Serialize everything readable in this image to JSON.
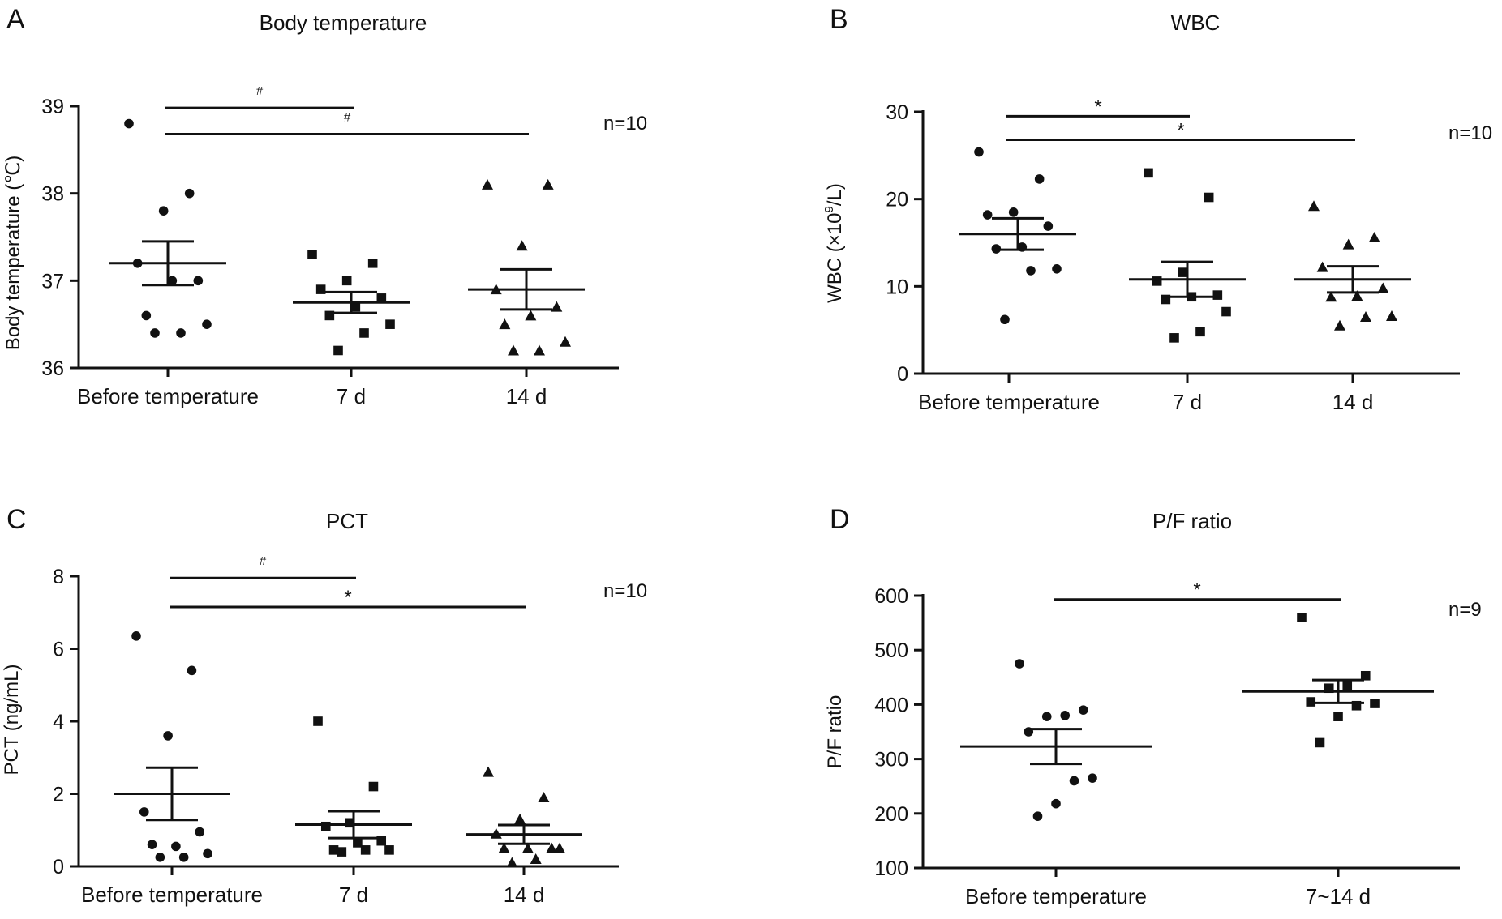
{
  "figure": {
    "background": "#ffffff",
    "ink": "#111111"
  },
  "chart_data": [
    {
      "panel": "A",
      "type": "scatter",
      "title": "Body temperature",
      "xlabel": "",
      "ylabel": "Body temperature (℃)",
      "ylim": [
        36,
        39
      ],
      "yticks": [
        36,
        37,
        38,
        39
      ],
      "categories": [
        "Before temperature",
        "7 d",
        "14 d"
      ],
      "annotation": "n=10",
      "series": [
        {
          "category": "Before temperature",
          "marker": "circle",
          "values": [
            38.8,
            38.0,
            37.8,
            37.2,
            37.0,
            37.0,
            36.6,
            36.5,
            36.4,
            36.4
          ],
          "mean": 37.2,
          "sem": 0.25
        },
        {
          "category": "7 d",
          "marker": "square",
          "values": [
            37.3,
            37.2,
            37.0,
            36.9,
            36.8,
            36.7,
            36.6,
            36.5,
            36.4,
            36.2
          ],
          "mean": 36.75,
          "sem": 0.12
        },
        {
          "category": "14 d",
          "marker": "triangle",
          "values": [
            38.1,
            38.1,
            37.4,
            36.9,
            36.7,
            36.6,
            36.5,
            36.3,
            36.2,
            36.2
          ],
          "mean": 36.9,
          "sem": 0.23
        }
      ],
      "significance": [
        {
          "from": "Before temperature",
          "to": "7 d",
          "y": 38.98,
          "label": "#"
        },
        {
          "from": "Before temperature",
          "to": "14 d",
          "y": 38.68,
          "label": "#"
        }
      ]
    },
    {
      "panel": "B",
      "type": "scatter",
      "title": "WBC",
      "xlabel": "",
      "ylabel": "WBC (×10",
      "ylabel_sup": "9",
      "ylabel_tail": "/L)",
      "ylim": [
        0,
        30
      ],
      "yticks": [
        0,
        10,
        20,
        30
      ],
      "categories": [
        "Before temperature",
        "7 d",
        "14 d"
      ],
      "annotation": "n=10",
      "series": [
        {
          "category": "Before temperature",
          "marker": "circle",
          "values": [
            25.4,
            22.3,
            18.5,
            18.2,
            16.9,
            14.5,
            14.3,
            12.0,
            11.8,
            6.2
          ],
          "mean": 16.0,
          "sem": 1.8
        },
        {
          "category": "7 d",
          "marker": "square",
          "values": [
            23.0,
            20.2,
            11.6,
            10.6,
            9.0,
            8.8,
            8.5,
            7.1,
            4.8,
            4.1
          ],
          "mean": 10.8,
          "sem": 2.0
        },
        {
          "category": "14 d",
          "marker": "triangle",
          "values": [
            19.2,
            15.6,
            14.8,
            12.2,
            9.8,
            8.9,
            8.8,
            6.6,
            6.5,
            5.5
          ],
          "mean": 10.8,
          "sem": 1.5
        }
      ],
      "significance": [
        {
          "from": "Before temperature",
          "to": "7 d",
          "y": 29.5,
          "label": "*"
        },
        {
          "from": "Before temperature",
          "to": "14 d",
          "y": 26.8,
          "label": "*"
        }
      ]
    },
    {
      "panel": "C",
      "type": "scatter",
      "title": "PCT",
      "xlabel": "",
      "ylabel": "PCT (ng/mL)",
      "ylim": [
        0,
        8
      ],
      "yticks": [
        0,
        2,
        4,
        6,
        8
      ],
      "categories": [
        "Before temperature",
        "7 d",
        "14 d"
      ],
      "annotation": "n=10",
      "series": [
        {
          "category": "Before temperature",
          "marker": "circle",
          "values": [
            6.35,
            5.4,
            3.6,
            1.5,
            0.95,
            0.55,
            0.6,
            0.35,
            0.25,
            0.25
          ],
          "mean": 2.0,
          "sem": 0.72
        },
        {
          "category": "7 d",
          "marker": "square",
          "values": [
            4.0,
            2.2,
            1.2,
            1.1,
            0.7,
            0.65,
            0.45,
            0.45,
            0.45,
            0.4
          ],
          "mean": 1.15,
          "sem": 0.37
        },
        {
          "category": "14 d",
          "marker": "triangle",
          "values": [
            2.6,
            1.9,
            1.3,
            0.9,
            0.5,
            0.5,
            0.5,
            0.5,
            0.2,
            0.1
          ],
          "mean": 0.88,
          "sem": 0.26
        }
      ],
      "significance": [
        {
          "from": "Before temperature",
          "to": "7 d",
          "y": 7.95,
          "label": "#"
        },
        {
          "from": "Before temperature",
          "to": "14 d",
          "y": 7.15,
          "label": "*"
        }
      ]
    },
    {
      "panel": "D",
      "type": "scatter",
      "title": "P/F ratio",
      "xlabel": "",
      "ylabel": "P/F ratio",
      "ylim": [
        100,
        600
      ],
      "yticks": [
        100,
        200,
        300,
        400,
        500,
        600
      ],
      "categories": [
        "Before temperature",
        "7~14 d"
      ],
      "annotation": "n=9",
      "series": [
        {
          "category": "Before temperature",
          "marker": "circle",
          "values": [
            475,
            390,
            380,
            378,
            350,
            265,
            260,
            218,
            195
          ],
          "mean": 323,
          "sem": 32
        },
        {
          "category": "7~14 d",
          "marker": "square",
          "values": [
            560,
            453,
            435,
            430,
            405,
            402,
            398,
            378,
            330
          ],
          "mean": 424,
          "sem": 21
        }
      ],
      "significance": [
        {
          "from": "Before temperature",
          "to": "7~14 d",
          "y": 593,
          "label": "*"
        }
      ]
    }
  ]
}
